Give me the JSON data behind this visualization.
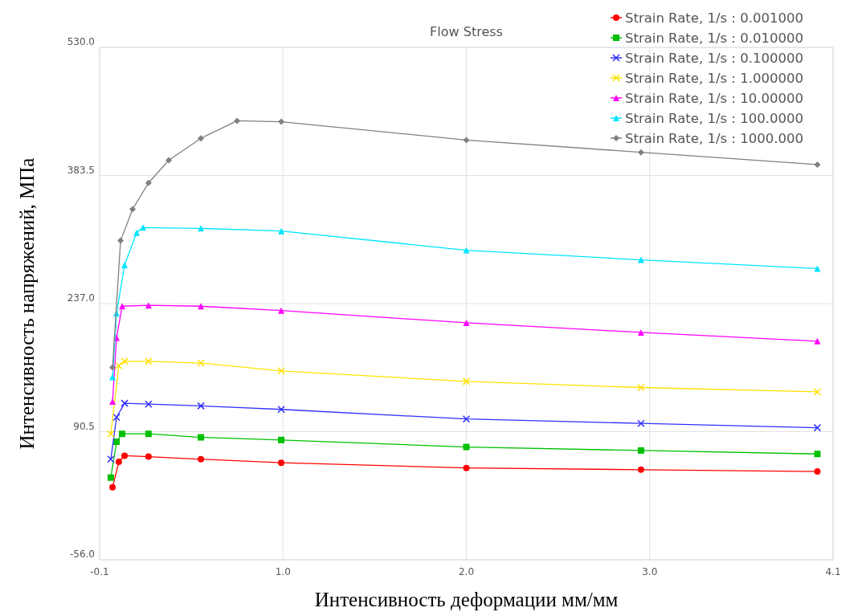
{
  "chart_data": {
    "type": "line",
    "title": "Flow Stress",
    "xlabel": "Интенсивность деформации мм/мм",
    "ylabel": "Интенсивность напряжений, МПа",
    "xlim": [
      -0.1,
      4.1
    ],
    "xticks": [
      -0.1,
      {
        "value": 0.95,
        "label": "1.0"
      },
      {
        "value": 2,
        "label": "2.0"
      },
      {
        "value": 3.05,
        "label": "3.0"
      },
      4.1
    ],
    "ylim": [
      -56,
      530
    ],
    "yticks": [
      {
        "value": -56,
        "label": "-56.0"
      },
      {
        "value": 90.5,
        "label": "90.5"
      },
      {
        "value": 237,
        "label": "237.0"
      },
      {
        "value": 383.5,
        "label": "383.5"
      },
      {
        "value": 530,
        "label": "530.0"
      }
    ],
    "grid": true,
    "legend": "top right",
    "series": [
      {
        "name": "Strain Rate, 1/s : 0.001000",
        "color": "#ff0000",
        "marker": "circle",
        "x": [
          -0.026,
          0.01,
          0.043,
          0.18,
          0.48,
          0.94,
          2.0,
          3.0,
          4.01
        ],
        "values": [
          27,
          56,
          63,
          62,
          59,
          55,
          49,
          47,
          45
        ]
      },
      {
        "name": "Strain Rate, 1/s : 0.010000",
        "color": "#00c000",
        "marker": "square",
        "x": [
          -0.036,
          -0.003,
          0.029,
          0.18,
          0.48,
          0.94,
          2.0,
          3.0,
          4.01
        ],
        "values": [
          38,
          79,
          88,
          88,
          84,
          81,
          73,
          69,
          65
        ]
      },
      {
        "name": "Strain Rate, 1/s : 0.100000",
        "color": "#3030ff",
        "marker": "cross",
        "x": [
          -0.036,
          -0.003,
          0.043,
          0.18,
          0.48,
          0.94,
          2.0,
          3.0,
          4.01
        ],
        "values": [
          59,
          107,
          123,
          122,
          120,
          116,
          105,
          100,
          95
        ]
      },
      {
        "name": "Strain Rate, 1/s : 1.000000",
        "color": "#ffe000",
        "marker": "cross",
        "x": [
          -0.036,
          0.01,
          0.043,
          0.18,
          0.48,
          0.94,
          2.0,
          3.0,
          4.01
        ],
        "values": [
          88,
          166,
          171,
          171,
          169,
          160,
          148,
          141,
          136
        ]
      },
      {
        "name": "Strain Rate, 1/s : 10.00000",
        "color": "#ff00ff",
        "marker": "triangle",
        "x": [
          -0.026,
          -0.003,
          0.029,
          0.18,
          0.48,
          0.94,
          2.0,
          3.0,
          4.01
        ],
        "values": [
          125,
          198,
          234,
          235,
          234,
          229,
          215,
          204,
          194
        ]
      },
      {
        "name": "Strain Rate, 1/s : 100.0000",
        "color": "#00e5ff",
        "marker": "triangle",
        "x": [
          -0.026,
          -0.003,
          0.043,
          0.112,
          0.148,
          0.48,
          0.94,
          2.0,
          3.0,
          4.01
        ],
        "values": [
          153,
          226,
          281,
          318,
          324,
          323,
          320,
          298,
          287,
          277
        ]
      },
      {
        "name": "Strain Rate, 1/s : 1000.000",
        "color": "#808080",
        "marker": "diamond",
        "x": [
          -0.026,
          0.02,
          0.089,
          0.18,
          0.296,
          0.48,
          0.687,
          0.94,
          2.0,
          3.0,
          4.01
        ],
        "values": [
          164,
          309,
          345,
          375,
          401,
          426,
          446,
          445,
          424,
          410,
          396
        ]
      }
    ]
  }
}
